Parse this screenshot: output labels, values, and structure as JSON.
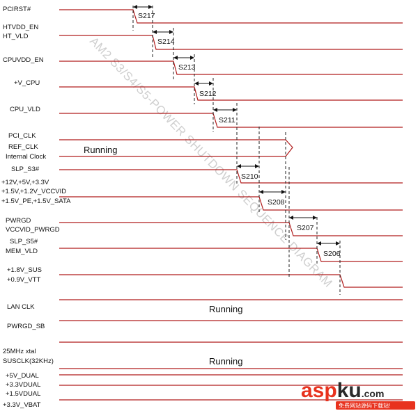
{
  "diagram": {
    "signals": [
      {
        "label": "PCIRST#"
      },
      {
        "label": "HTVDD_EN"
      },
      {
        "label": "HT_VLD"
      },
      {
        "label": "CPUVDD_EN"
      },
      {
        "label": "+V_CPU"
      },
      {
        "label": "CPU_VLD"
      },
      {
        "label": "PCI_CLK"
      },
      {
        "label": "REF_CLK"
      },
      {
        "label": "Internal Clock"
      },
      {
        "label": "SLP_S3#"
      },
      {
        "label": "+12V,+5V,+3.3V"
      },
      {
        "label": "+1.5V,+1.2V_VCCVID"
      },
      {
        "label": "+1.5V_PE,+1.5V_SATA"
      },
      {
        "label": "PWRGD"
      },
      {
        "label": "VCCVID_PWRGD"
      },
      {
        "label": "SLP_S5#"
      },
      {
        "label": "MEM_VLD"
      },
      {
        "label": "+1.8V_SUS"
      },
      {
        "label": "+0.9V_VTT"
      },
      {
        "label": "LAN CLK"
      },
      {
        "label": "PWRGD_SB"
      },
      {
        "label": "25MHz xtal"
      },
      {
        "label": "SUSCLK(32KHz)"
      },
      {
        "label": "+5V_DUAL"
      },
      {
        "label": "+3.3VDUAL"
      },
      {
        "label": "+1.5VDUAL"
      },
      {
        "label": "+3.3V_VBAT"
      }
    ],
    "timings": [
      {
        "label": "S217"
      },
      {
        "label": "S214"
      },
      {
        "label": "S213"
      },
      {
        "label": "S212"
      },
      {
        "label": "S211"
      },
      {
        "label": "S210"
      },
      {
        "label": "S208"
      },
      {
        "label": "S207"
      },
      {
        "label": "S206"
      }
    ],
    "running": [
      {
        "label": "Running"
      },
      {
        "label": "Running"
      },
      {
        "label": "Running"
      }
    ],
    "watermark": "AM2 S3/S4/S5-POWER SHUTDOWN SEQUENCE DIAGRAM",
    "logo": {
      "text_red": "asp",
      "text_dark": "ku",
      "text_tail": ".com",
      "subtitle": "免费网站源码下载站!"
    },
    "colors": {
      "waveform": "#b01c1c",
      "dashed": "#222222",
      "arrow": "#111111",
      "watermark": "#cfcfcf",
      "logo_red": "#e8321e",
      "logo_dark": "#2a2a2a"
    }
  }
}
